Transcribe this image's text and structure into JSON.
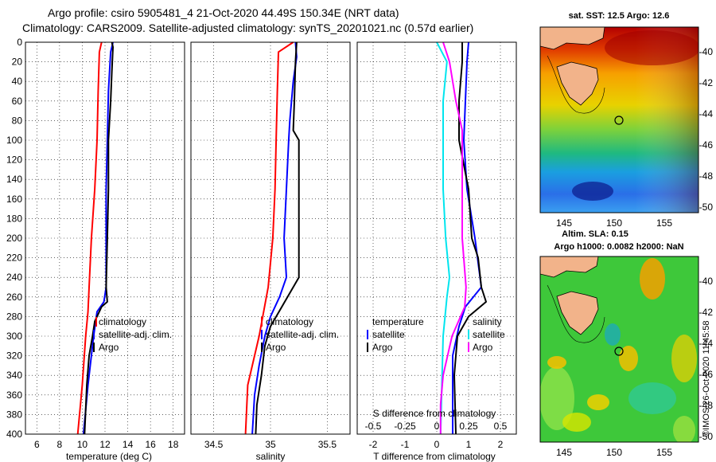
{
  "header": {
    "line1": "Argo profile: csiro 5905481_4 21-Oct-2020 44.49S 150.34E (NRT data)",
    "line2": "Climatology: CARS2009. Satellite-adjusted climatology: synTS_20201021.nc (0.57d earlier)"
  },
  "colors": {
    "climatology": "#ff0000",
    "satellite": "#0000ff",
    "argo": "#000000",
    "sat_salinity": "#00e5ee",
    "argo_salinity_diff": "#ff00ff"
  },
  "chart_data": [
    {
      "type": "line",
      "name": "temperature-profile",
      "xlabel": "temperature (deg C)",
      "ylabel": "",
      "xlim": [
        5,
        19
      ],
      "ylim": [
        400,
        0
      ],
      "xticks": [
        6,
        8,
        10,
        12,
        14,
        16,
        18
      ],
      "yticks": [
        0,
        20,
        40,
        60,
        80,
        100,
        120,
        140,
        160,
        180,
        200,
        220,
        240,
        260,
        280,
        300,
        320,
        340,
        360,
        380,
        400
      ],
      "grid": true,
      "legend": [
        "climatology",
        "satellite-adj. clim.",
        "Argo"
      ],
      "series": [
        {
          "name": "climatology",
          "depth": [
            0,
            10,
            50,
            100,
            150,
            200,
            250,
            275,
            300,
            350,
            400
          ],
          "values": [
            11.7,
            11.5,
            11.4,
            11.3,
            11.1,
            10.8,
            10.6,
            10.5,
            10.3,
            10.0,
            9.6
          ]
        },
        {
          "name": "satellite-adj. clim.",
          "depth": [
            0,
            10,
            30,
            50,
            100,
            150,
            200,
            250,
            265,
            275,
            300,
            350,
            400
          ],
          "values": [
            12.7,
            12.5,
            12.4,
            12.3,
            12.2,
            12.1,
            12.1,
            12.1,
            11.9,
            11.3,
            11.0,
            10.5,
            10.1
          ]
        },
        {
          "name": "Argo",
          "depth": [
            0,
            5,
            30,
            60,
            100,
            150,
            200,
            250,
            265,
            270,
            285,
            300,
            320,
            350,
            400
          ],
          "values": [
            12.6,
            12.7,
            12.6,
            12.5,
            12.3,
            12.3,
            12.2,
            12.1,
            12.2,
            11.7,
            11.1,
            10.9,
            10.6,
            10.4,
            10.2
          ]
        }
      ]
    },
    {
      "type": "line",
      "name": "salinity-profile",
      "xlabel": "salinity",
      "xlim": [
        34.3,
        35.7
      ],
      "ylim": [
        400,
        0
      ],
      "xticks": [
        34.5,
        35,
        35.5
      ],
      "grid": true,
      "legend": [
        "climatology",
        "satellite-adj. clim.",
        "Argo"
      ],
      "series": [
        {
          "name": "climatology",
          "depth": [
            0,
            10,
            50,
            100,
            150,
            200,
            250,
            300,
            350,
            400
          ],
          "values": [
            35.2,
            35.07,
            35.06,
            35.05,
            35.04,
            35.02,
            34.98,
            34.9,
            34.8,
            34.78
          ]
        },
        {
          "name": "satellite-adj. clim.",
          "depth": [
            0,
            15,
            40,
            80,
            100,
            150,
            200,
            240,
            260,
            280,
            300,
            330,
            360,
            400
          ],
          "values": [
            35.22,
            35.23,
            35.2,
            35.17,
            35.16,
            35.14,
            35.12,
            35.14,
            35.08,
            35.0,
            34.95,
            34.9,
            34.86,
            34.84
          ]
        },
        {
          "name": "Argo",
          "depth": [
            0,
            20,
            60,
            90,
            100,
            150,
            200,
            240,
            270,
            290,
            310,
            340,
            370,
            400
          ],
          "values": [
            35.23,
            35.22,
            35.21,
            35.2,
            35.25,
            35.25,
            35.25,
            35.25,
            35.1,
            35.0,
            34.95,
            34.92,
            34.88,
            34.87
          ]
        }
      ]
    },
    {
      "type": "line",
      "name": "difference-profile",
      "xlabel": "T difference from climatology",
      "xlabel_top": "S difference from climatology",
      "xlim": [
        -2.5,
        2.5
      ],
      "xlim_top": [
        -0.625,
        0.625
      ],
      "ylim": [
        400,
        0
      ],
      "xticks": [
        -2,
        -1,
        0,
        1,
        2
      ],
      "xticks_top": [
        "-0.5",
        "-0.25",
        "0",
        "0.25",
        "0.5"
      ],
      "grid": true,
      "legend_left_title": "temperature",
      "legend_left": [
        "satellite",
        "Argo"
      ],
      "legend_right_title": "salinity",
      "legend_right": [
        "satellite",
        "Argo"
      ],
      "series": [
        {
          "name": "T satellite",
          "depth": [
            0,
            20,
            60,
            100,
            150,
            200,
            250,
            270,
            290,
            320,
            360,
            400
          ],
          "values": [
            1.0,
            0.95,
            0.9,
            0.85,
            0.95,
            1.2,
            1.4,
            0.9,
            0.7,
            0.5,
            0.5,
            0.5
          ]
        },
        {
          "name": "T Argo",
          "depth": [
            0,
            20,
            60,
            100,
            150,
            200,
            220,
            250,
            265,
            280,
            300,
            340,
            400
          ],
          "values": [
            0.8,
            0.8,
            0.7,
            0.7,
            1.0,
            1.1,
            1.3,
            1.4,
            1.55,
            1.0,
            0.65,
            0.55,
            0.6
          ]
        },
        {
          "name": "S satellite",
          "depth": [
            0,
            20,
            60,
            100,
            150,
            200,
            240,
            260,
            300,
            350,
            400
          ],
          "values": [
            0.0,
            0.08,
            0.05,
            0.05,
            0.05,
            0.07,
            0.1,
            0.08,
            0.05,
            0.04,
            0.03
          ]
        },
        {
          "name": "S Argo",
          "depth": [
            0,
            20,
            60,
            90,
            100,
            150,
            200,
            250,
            270,
            300,
            340,
            370,
            400
          ],
          "values": [
            0.05,
            0.1,
            0.15,
            0.2,
            0.2,
            0.2,
            0.2,
            0.23,
            0.22,
            0.12,
            0.05,
            0.03,
            0.03
          ]
        }
      ]
    }
  ],
  "maps": {
    "sst": {
      "title": "sat. SST: 12.5 Argo: 12.6",
      "xticks": [
        "145",
        "150",
        "155"
      ],
      "yticks": [
        "-40",
        "-42",
        "-44",
        "-46",
        "-48",
        "-50"
      ]
    },
    "sla": {
      "title_line1": "Altim. SLA: 0.15",
      "title_line2": "Argo h1000: 0.0082 h2000: NaN",
      "xticks": [
        "145",
        "150",
        "155"
      ],
      "yticks": [
        "-40",
        "-42",
        "-44",
        "-46",
        "-48",
        "-50"
      ]
    },
    "credit": "©IMOS 26-Oct-2020 11:45:58"
  }
}
